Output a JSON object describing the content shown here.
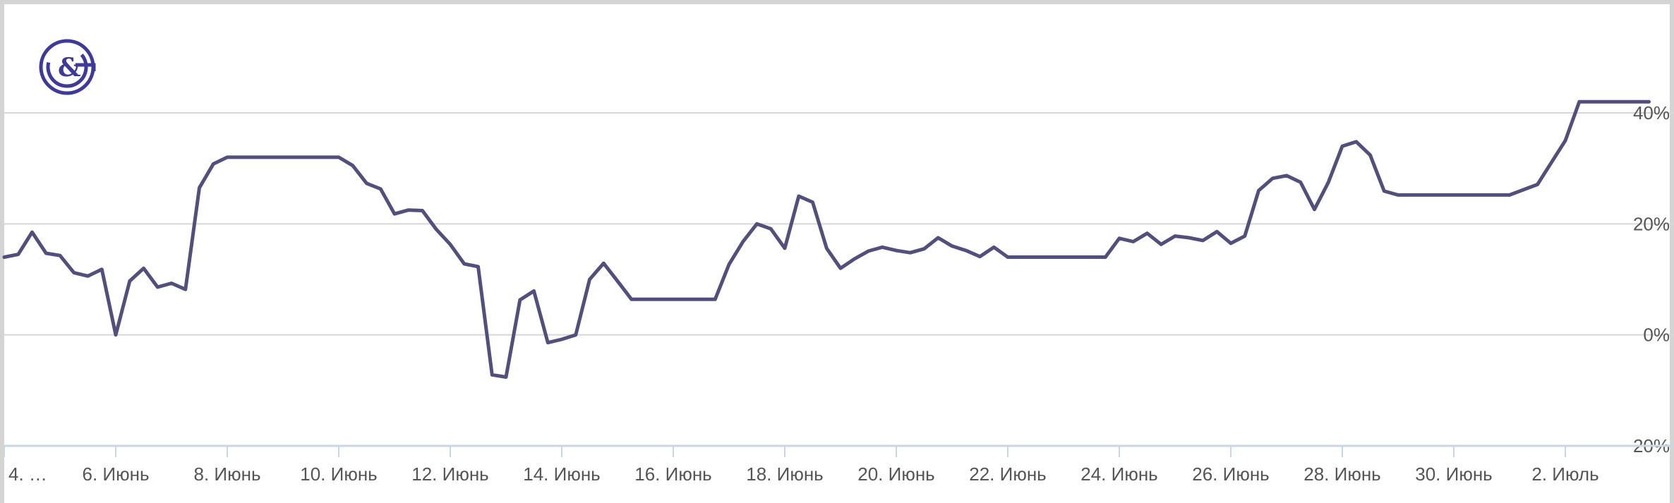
{
  "chart_data": {
    "type": "line",
    "color": "#524f7d",
    "logo_color": "#3d3a9a",
    "logo_icon": "cg-logo-icon",
    "grid": true,
    "ylim": [
      -20,
      40
    ],
    "y_ticks": [
      {
        "value": 40,
        "label": "40%"
      },
      {
        "value": 20,
        "label": "20%"
      },
      {
        "value": 0,
        "label": "0%"
      },
      {
        "value": -20,
        "label": "−20%"
      }
    ],
    "x_ticks": [
      {
        "day": 4,
        "label": "4. …"
      },
      {
        "day": 6,
        "label": "6. Июнь"
      },
      {
        "day": 8,
        "label": "8. Июнь"
      },
      {
        "day": 10,
        "label": "10. Июнь"
      },
      {
        "day": 12,
        "label": "12. Июнь"
      },
      {
        "day": 14,
        "label": "14. Июнь"
      },
      {
        "day": 16,
        "label": "16. Июнь"
      },
      {
        "day": 18,
        "label": "18. Июнь"
      },
      {
        "day": 20,
        "label": "20. Июнь"
      },
      {
        "day": 22,
        "label": "22. Июнь"
      },
      {
        "day": 24,
        "label": "24. Июнь"
      },
      {
        "day": 26,
        "label": "26. Июнь"
      },
      {
        "day": 28,
        "label": "28. Июнь"
      },
      {
        "day": 30,
        "label": "30. Июнь"
      },
      {
        "day": 32,
        "label": "2. Июль"
      }
    ],
    "series": [
      {
        "values": [
          [
            4.0,
            14.0
          ],
          [
            4.25,
            14.5
          ],
          [
            4.5,
            18.5
          ],
          [
            4.75,
            14.7
          ],
          [
            5.0,
            14.3
          ],
          [
            5.25,
            11.2
          ],
          [
            5.5,
            10.6
          ],
          [
            5.75,
            11.8
          ],
          [
            6.0,
            0.0
          ],
          [
            6.25,
            9.7
          ],
          [
            6.5,
            12.0
          ],
          [
            6.75,
            8.6
          ],
          [
            7.0,
            9.3
          ],
          [
            7.25,
            8.2
          ],
          [
            7.5,
            26.5
          ],
          [
            7.75,
            30.8
          ],
          [
            8.0,
            32.0
          ],
          [
            8.5,
            32.0
          ],
          [
            9.0,
            32.0
          ],
          [
            9.5,
            32.0
          ],
          [
            10.0,
            32.0
          ],
          [
            10.25,
            30.5
          ],
          [
            10.5,
            27.3
          ],
          [
            10.75,
            26.3
          ],
          [
            11.0,
            21.8
          ],
          [
            11.25,
            22.5
          ],
          [
            11.5,
            22.4
          ],
          [
            11.75,
            19.0
          ],
          [
            12.0,
            16.3
          ],
          [
            12.25,
            12.8
          ],
          [
            12.5,
            12.3
          ],
          [
            12.75,
            -7.2
          ],
          [
            13.0,
            -7.6
          ],
          [
            13.25,
            6.3
          ],
          [
            13.5,
            7.9
          ],
          [
            13.75,
            -1.4
          ],
          [
            14.0,
            -0.8
          ],
          [
            14.25,
            0.0
          ],
          [
            14.5,
            10.0
          ],
          [
            14.75,
            12.9
          ],
          [
            15.0,
            9.7
          ],
          [
            15.25,
            6.4
          ],
          [
            15.75,
            6.4
          ],
          [
            16.25,
            6.4
          ],
          [
            16.75,
            6.4
          ],
          [
            17.0,
            12.7
          ],
          [
            17.25,
            16.8
          ],
          [
            17.5,
            20.0
          ],
          [
            17.75,
            19.1
          ],
          [
            18.0,
            15.6
          ],
          [
            18.25,
            25.0
          ],
          [
            18.5,
            23.9
          ],
          [
            18.75,
            15.6
          ],
          [
            19.0,
            12.0
          ],
          [
            19.25,
            13.7
          ],
          [
            19.5,
            15.1
          ],
          [
            19.75,
            15.8
          ],
          [
            20.0,
            15.2
          ],
          [
            20.25,
            14.8
          ],
          [
            20.5,
            15.5
          ],
          [
            20.75,
            17.5
          ],
          [
            21.0,
            16.0
          ],
          [
            21.25,
            15.2
          ],
          [
            21.5,
            14.1
          ],
          [
            21.75,
            15.8
          ],
          [
            22.0,
            14.0
          ],
          [
            22.5,
            14.0
          ],
          [
            23.0,
            14.0
          ],
          [
            23.5,
            14.0
          ],
          [
            23.75,
            14.0
          ],
          [
            24.0,
            17.4
          ],
          [
            24.25,
            16.8
          ],
          [
            24.5,
            18.3
          ],
          [
            24.75,
            16.3
          ],
          [
            25.0,
            17.8
          ],
          [
            25.25,
            17.5
          ],
          [
            25.5,
            17.0
          ],
          [
            25.75,
            18.6
          ],
          [
            26.0,
            16.5
          ],
          [
            26.25,
            17.8
          ],
          [
            26.5,
            26.0
          ],
          [
            26.75,
            28.2
          ],
          [
            27.0,
            28.7
          ],
          [
            27.25,
            27.5
          ],
          [
            27.5,
            22.6
          ],
          [
            27.75,
            27.5
          ],
          [
            28.0,
            34.0
          ],
          [
            28.25,
            34.8
          ],
          [
            28.5,
            32.4
          ],
          [
            28.75,
            25.9
          ],
          [
            29.0,
            25.2
          ],
          [
            29.5,
            25.2
          ],
          [
            30.0,
            25.2
          ],
          [
            30.5,
            25.2
          ],
          [
            31.0,
            25.2
          ],
          [
            31.5,
            27.1
          ],
          [
            32.0,
            35.0
          ],
          [
            32.25,
            42.0
          ],
          [
            32.75,
            42.0
          ],
          [
            33.25,
            42.0
          ],
          [
            33.5,
            42.0
          ]
        ]
      }
    ]
  }
}
